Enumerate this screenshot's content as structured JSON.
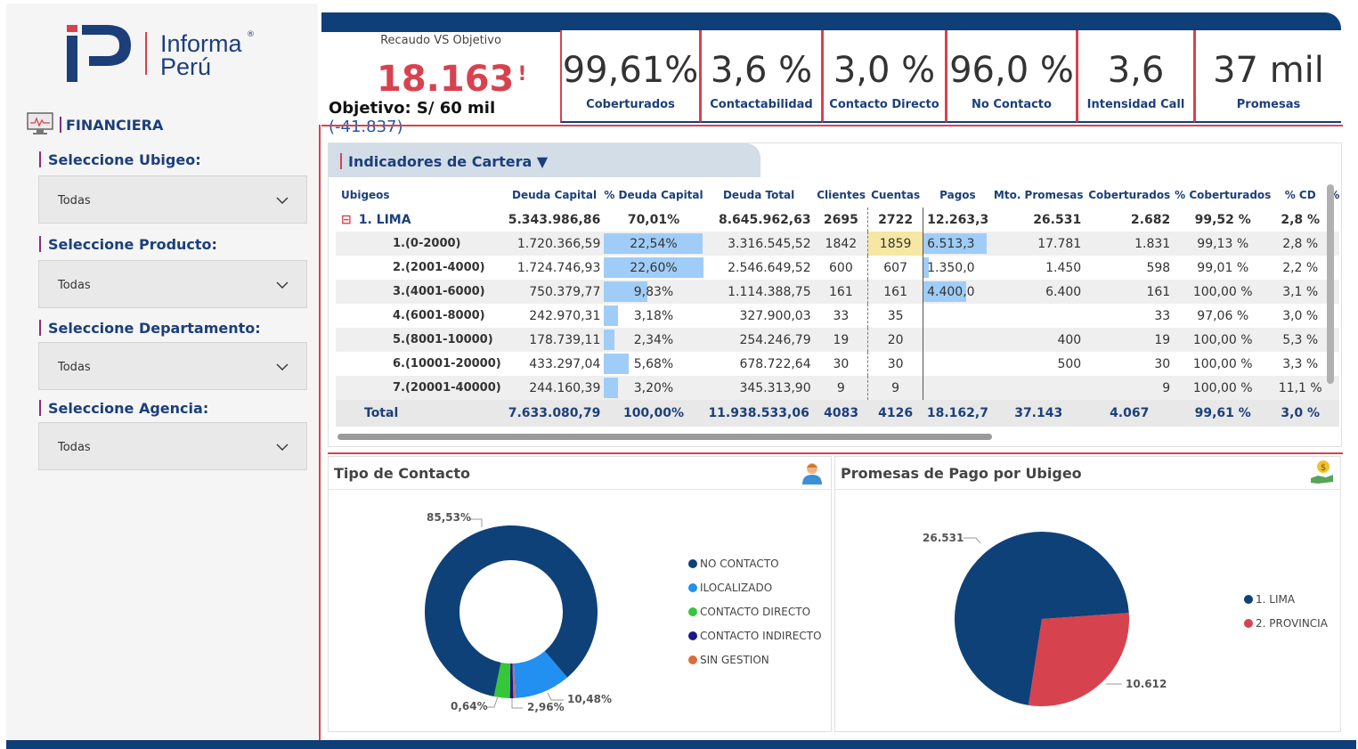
{
  "brand": {
    "line1": "Informa",
    "line2": "Perú",
    "reg": "®"
  },
  "section_label": "FINANCIERA",
  "filters": [
    {
      "title": "Seleccione Ubigeo:",
      "value": "Todas"
    },
    {
      "title": "Seleccione Producto:",
      "value": "Todas"
    },
    {
      "title": "Seleccione Departamento:",
      "value": "Todas"
    },
    {
      "title": "Seleccione Agencia:",
      "value": "Todas"
    }
  ],
  "recaudo": {
    "title": "Recaudo VS Objetivo",
    "value": "18.163",
    "mark": "!",
    "objetivo": "Objetivo: S/ 60 mil",
    "diff": "(-41.837)"
  },
  "kpis": [
    {
      "value": "99,61%",
      "label": "Coberturados"
    },
    {
      "value": "3,6 %",
      "label": "Contactabilidad"
    },
    {
      "value": "3,0 %",
      "label": "Contacto Directo"
    },
    {
      "value": "96,0 %",
      "label": "No Contacto"
    },
    {
      "value": "3,6",
      "label": "Intensidad Call"
    },
    {
      "value": "37 mil",
      "label": "Promesas"
    }
  ],
  "table": {
    "title": "Indicadores de Cartera",
    "headers": [
      "Ubigeos",
      "Deuda Capital",
      "% Deuda Capital",
      "Deuda Total",
      "Clientes",
      "Cuentas",
      "Pagos",
      "Mto. Promesas",
      "Coberturados",
      "% Coberturados",
      "% CD",
      "%"
    ],
    "rows": [
      {
        "cells": [
          "1. LIMA",
          "5.343.986,86",
          "70,01%",
          "8.645.962,63",
          "2695",
          "2722",
          "12.263,3",
          "26.531",
          "2.682",
          "99,52 %",
          "2,8 %"
        ],
        "pct": 0,
        "cuentas_hl": false,
        "pagos_pct": 0,
        "expand": "⊟"
      },
      {
        "cells": [
          "1.(0-2000)",
          "1.720.366,59",
          "22,54%",
          "3.316.545,52",
          "1842",
          "1859",
          "6.513,3",
          "17.781",
          "1.831",
          "99,13 %",
          "2,8 %"
        ],
        "pct": 0.2254,
        "cuentas_hl": true,
        "pagos_pct": 0.92
      },
      {
        "cells": [
          "2.(2001-4000)",
          "1.724.746,93",
          "22,60%",
          "2.546.649,52",
          "600",
          "607",
          "1.350,0",
          "1.450",
          "598",
          "99,01 %",
          "2,2 %"
        ],
        "pct": 0.226,
        "cuentas_hl": false,
        "pagos_pct": 0.08
      },
      {
        "cells": [
          "3.(4001-6000)",
          "750.379,77",
          "9,83%",
          "1.114.388,75",
          "161",
          "161",
          "4.400,0",
          "6.400",
          "161",
          "100,00 %",
          "3,1 %"
        ],
        "pct": 0.0983,
        "cuentas_hl": false,
        "pagos_pct": 0.62
      },
      {
        "cells": [
          "4.(6001-8000)",
          "242.970,31",
          "3,18%",
          "327.900,03",
          "33",
          "35",
          "",
          "",
          "33",
          "97,06 %",
          "3,0 %"
        ],
        "pct": 0.0318,
        "cuentas_hl": false,
        "pagos_pct": 0
      },
      {
        "cells": [
          "5.(8001-10000)",
          "178.739,11",
          "2,34%",
          "254.246,79",
          "19",
          "20",
          "",
          "400",
          "19",
          "100,00 %",
          "5,3 %"
        ],
        "pct": 0.0234,
        "cuentas_hl": false,
        "pagos_pct": 0
      },
      {
        "cells": [
          "6.(10001-20000)",
          "433.297,04",
          "5,68%",
          "678.722,64",
          "30",
          "30",
          "",
          "500",
          "30",
          "100,00 %",
          "3,3 %"
        ],
        "pct": 0.0568,
        "cuentas_hl": false,
        "pagos_pct": 0
      },
      {
        "cells": [
          "7.(20001-40000)",
          "244.160,39",
          "3,20%",
          "345.313,90",
          "9",
          "9",
          "",
          "",
          "9",
          "100,00 %",
          "11,1 %"
        ],
        "pct": 0.032,
        "cuentas_hl": false,
        "pagos_pct": 0
      }
    ],
    "total": [
      "Total",
      "7.633.080,79",
      "100,00%",
      "11.938.533,06",
      "4083",
      "4126",
      "18.162,7",
      "37.143",
      "4.067",
      "99,61 %",
      "3,0 %"
    ]
  },
  "chart_data": [
    {
      "type": "pie",
      "title": "Tipo de Contacto",
      "categories": [
        "NO CONTACTO",
        "ILOCALIZADO",
        "CONTACTO DIRECTO",
        "CONTACTO INDIRECTO",
        "SIN GESTION"
      ],
      "values": [
        85.53,
        10.48,
        2.96,
        0.64,
        0.39
      ],
      "colors": [
        "#0f4179",
        "#2190f0",
        "#36c63a",
        "#1a1a8c",
        "#e06a3a"
      ],
      "labels": [
        "85,53%",
        "10,48%",
        "2,96%",
        "0,64%"
      ],
      "donut": true
    },
    {
      "type": "pie",
      "title": "Promesas de Pago por Ubigeo",
      "categories": [
        "1. LIMA",
        "2. PROVINCIA"
      ],
      "values": [
        26531,
        10612
      ],
      "colors": [
        "#0f4179",
        "#d6434f"
      ],
      "labels": [
        "26.531",
        "10.612"
      ]
    }
  ]
}
